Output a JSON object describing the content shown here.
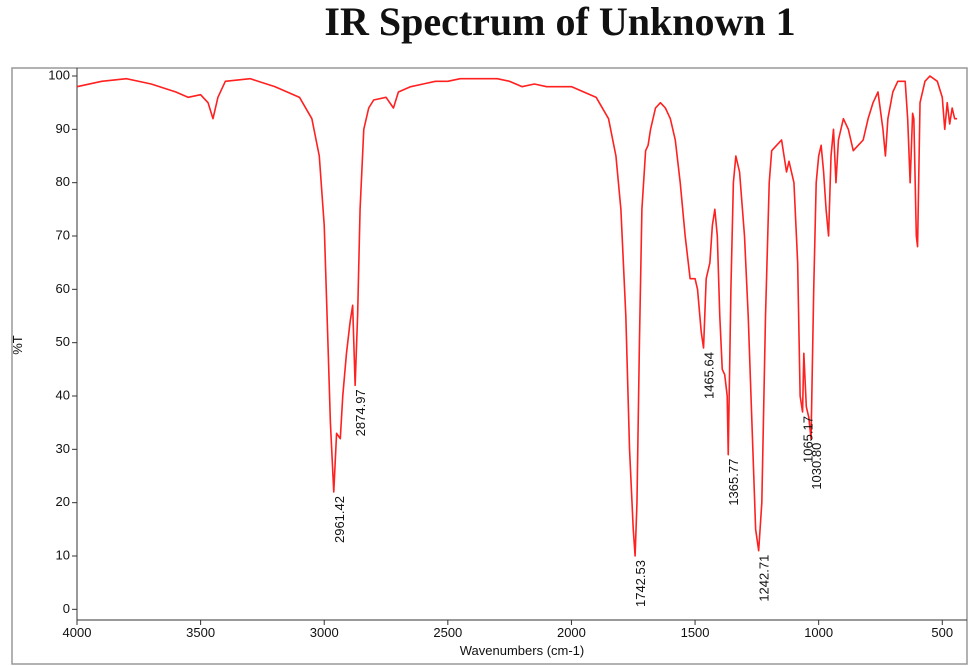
{
  "chart_data": {
    "type": "line",
    "title": "IR Spectrum of Unknown 1",
    "x_label": "Wavenumbers (cm-1)",
    "y_label": "%T",
    "xlim": [
      4000,
      400
    ],
    "ylim": [
      -2,
      101.5
    ],
    "xticks": [
      4000,
      3500,
      3000,
      2500,
      2000,
      1500,
      1000,
      500
    ],
    "yticks": [
      0,
      10,
      20,
      30,
      40,
      50,
      60,
      70,
      80,
      90,
      100
    ],
    "series": [
      {
        "name": "Unknown 1",
        "color": "#ff2020",
        "x": [
          4000,
          3900,
          3800,
          3700,
          3600,
          3550,
          3500,
          3470,
          3450,
          3430,
          3400,
          3300,
          3200,
          3100,
          3050,
          3020,
          3000,
          2985,
          2975,
          2961.42,
          2950,
          2935,
          2925,
          2910,
          2895,
          2885,
          2874.97,
          2865,
          2855,
          2840,
          2820,
          2800,
          2750,
          2720,
          2700,
          2650,
          2600,
          2550,
          2500,
          2450,
          2400,
          2300,
          2250,
          2200,
          2150,
          2100,
          2000,
          1950,
          1900,
          1850,
          1820,
          1800,
          1780,
          1765,
          1750,
          1742.53,
          1735,
          1725,
          1715,
          1700,
          1690,
          1680,
          1660,
          1640,
          1620,
          1600,
          1580,
          1560,
          1540,
          1520,
          1500,
          1490,
          1475,
          1465.64,
          1455,
          1440,
          1430,
          1420,
          1410,
          1400,
          1390,
          1380,
          1370,
          1365.77,
          1355,
          1345,
          1335,
          1320,
          1300,
          1285,
          1270,
          1255,
          1242.71,
          1230,
          1215,
          1200,
          1190,
          1170,
          1150,
          1130,
          1120,
          1100,
          1085,
          1075,
          1065.17,
          1060,
          1050,
          1040,
          1030.8,
          1020,
          1010,
          1000,
          990,
          980,
          970,
          960,
          950,
          940,
          930,
          920,
          900,
          880,
          860,
          840,
          820,
          800,
          780,
          760,
          740,
          730,
          720,
          700,
          680,
          650,
          640,
          630,
          620,
          615,
          605,
          600,
          590,
          570,
          550,
          520,
          500,
          490,
          480,
          470,
          460,
          450,
          440
        ],
        "values": [
          98,
          99,
          99.5,
          98.5,
          97,
          96,
          96.5,
          95,
          92,
          96,
          99,
          99.5,
          98,
          96,
          92,
          85,
          72,
          50,
          35,
          22,
          33,
          32,
          40,
          48,
          54,
          57,
          42,
          55,
          75,
          90,
          94,
          95.5,
          96,
          94,
          97,
          98,
          98.5,
          99,
          99,
          99.5,
          99.5,
          99.5,
          99,
          98,
          98.5,
          98,
          98,
          97,
          96,
          92,
          85,
          75,
          55,
          30,
          15,
          10,
          20,
          50,
          75,
          86,
          87,
          90,
          94,
          95,
          94,
          92,
          88,
          80,
          70,
          62,
          62,
          60,
          52,
          49,
          62,
          65,
          72,
          75,
          70,
          55,
          45,
          44,
          40,
          29,
          60,
          80,
          85,
          82,
          70,
          55,
          35,
          15,
          11,
          20,
          55,
          80,
          86,
          87,
          88,
          82,
          84,
          80,
          65,
          40,
          37,
          48,
          38,
          36,
          32,
          60,
          80,
          85,
          87,
          82,
          75,
          70,
          85,
          90,
          80,
          88,
          92,
          90,
          86,
          87,
          88,
          92,
          95,
          97,
          90,
          85,
          92,
          97,
          99,
          99,
          92,
          80,
          93,
          92,
          70,
          68,
          95,
          99,
          100,
          99,
          96,
          90,
          95,
          91,
          94,
          92,
          92
        ]
      }
    ],
    "peaks": [
      {
        "value": 2961.42,
        "label": "2961.42",
        "y": 22
      },
      {
        "value": 2874.97,
        "label": "2874.97",
        "y": 42
      },
      {
        "value": 1742.53,
        "label": "1742.53",
        "y": 10
      },
      {
        "value": 1465.64,
        "label": "1465.64",
        "y": 49
      },
      {
        "value": 1365.77,
        "label": "1365.77",
        "y": 29
      },
      {
        "value": 1242.71,
        "label": "1242.71",
        "y": 11
      },
      {
        "value": 1065.17,
        "label": "1065.17",
        "y": 37
      },
      {
        "value": 1030.8,
        "label": "1030.80",
        "y": 32
      }
    ]
  }
}
